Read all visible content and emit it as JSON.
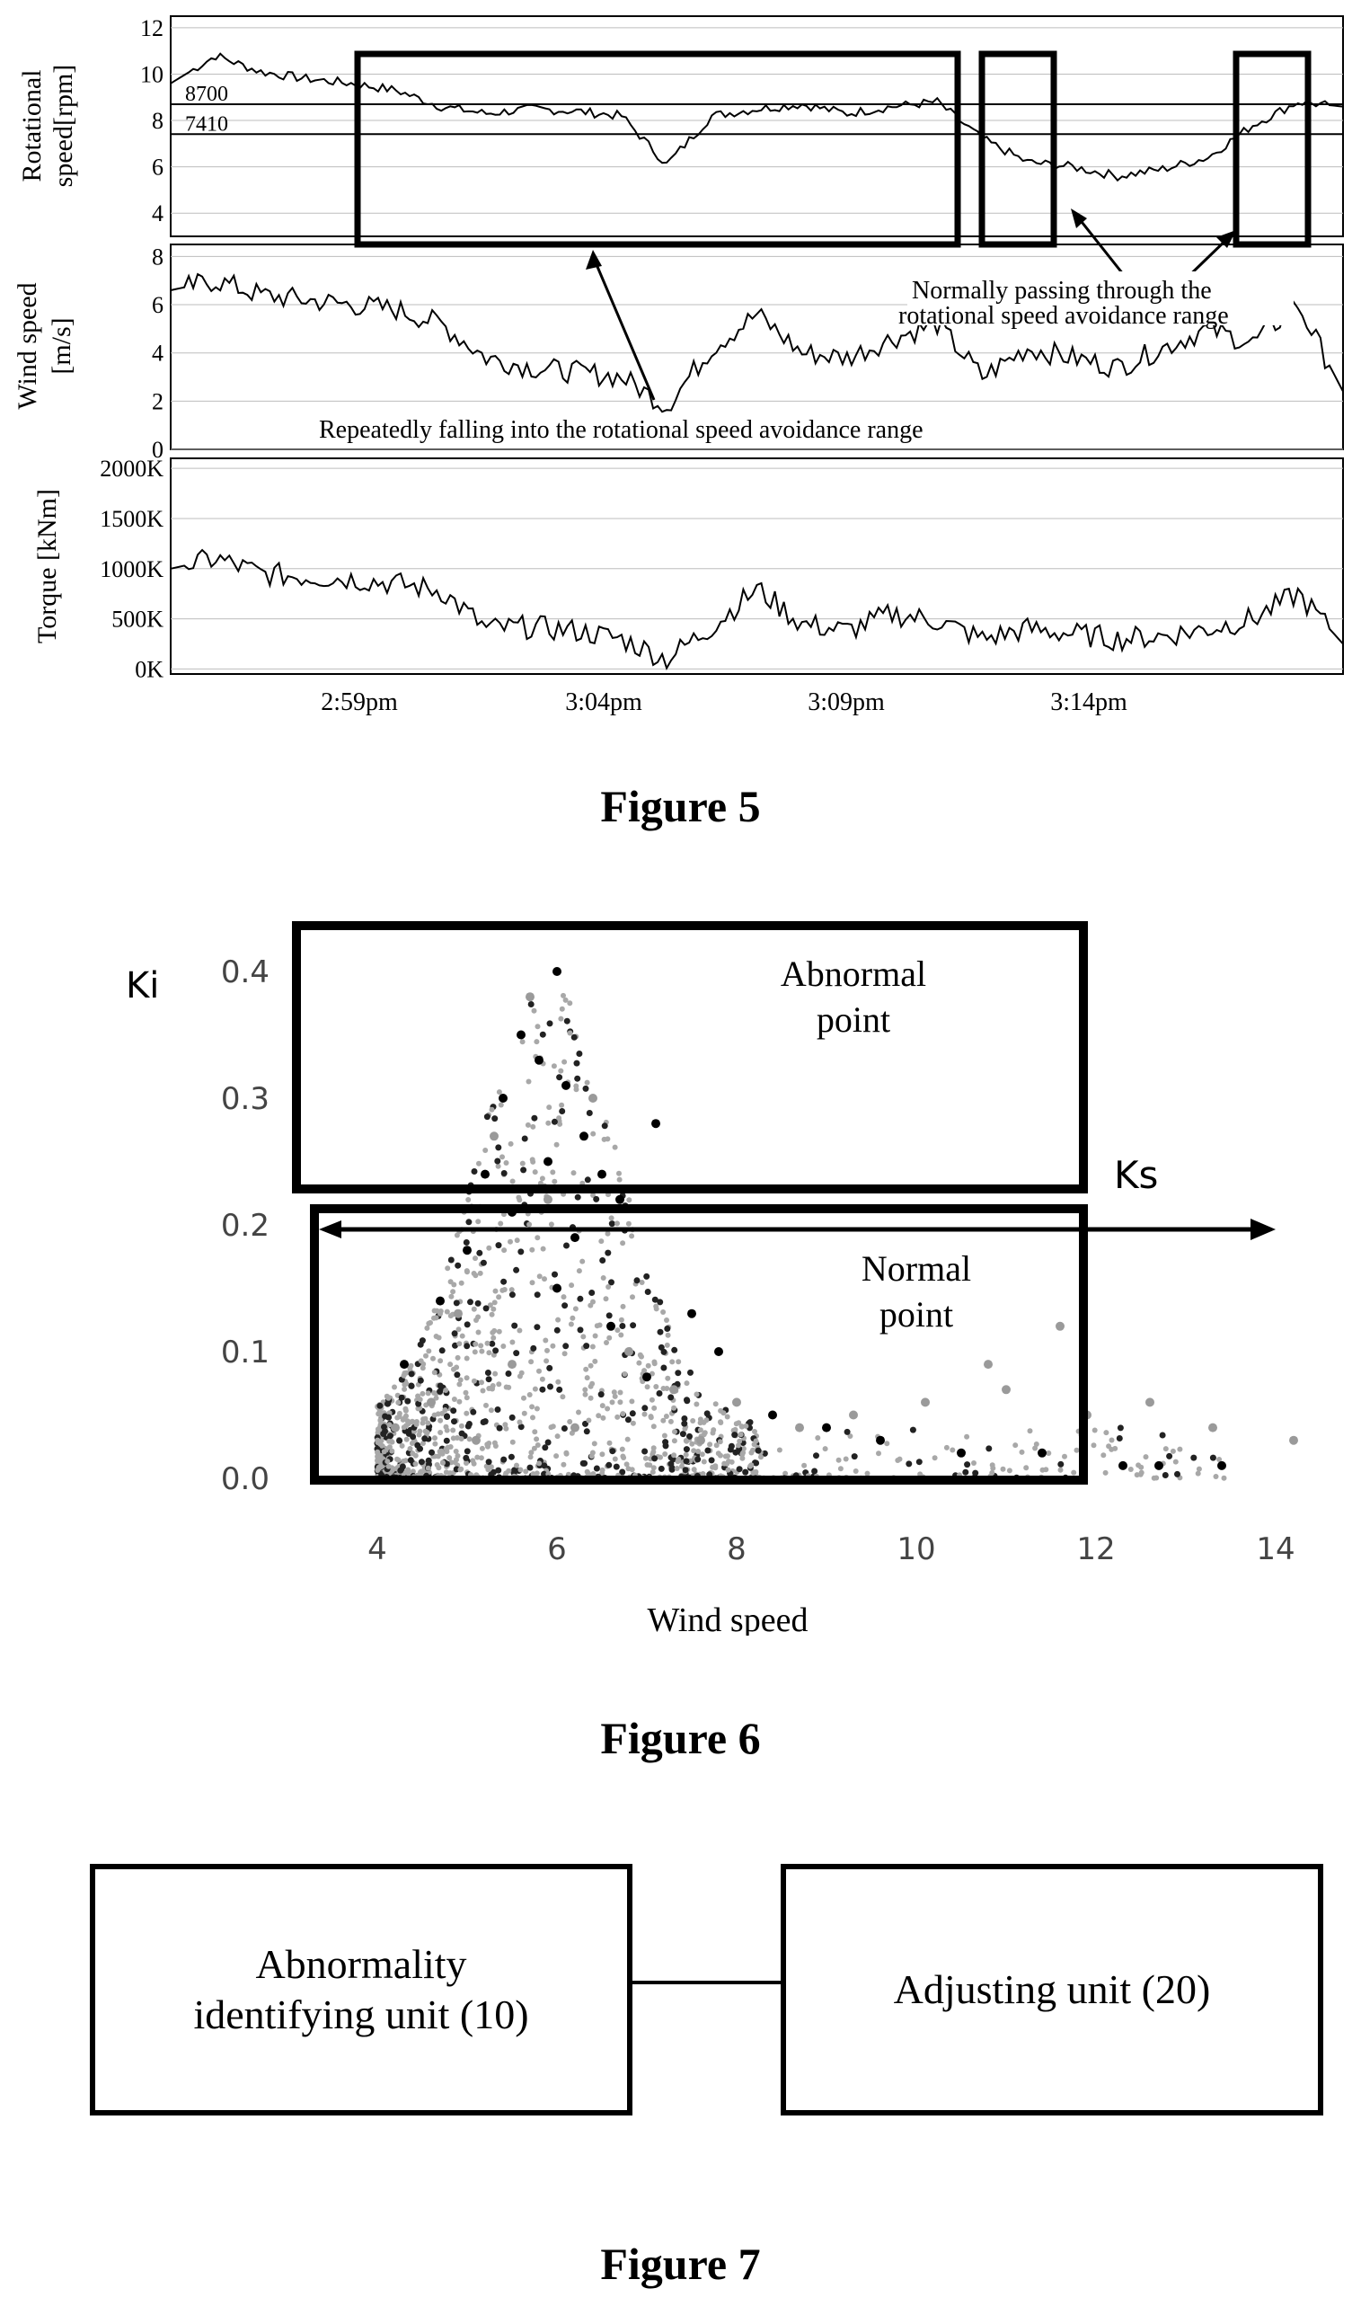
{
  "figure5": {
    "caption": "Figure 5",
    "time_ticks": [
      "2:59pm",
      "3:04pm",
      "3:09pm",
      "3:14pm"
    ],
    "annotations": {
      "repeat": "Repeatedly falling into the rotational speed avoidance range",
      "normal_line1": "Normally passing through the",
      "normal_line2": "rotational speed avoidance range"
    },
    "speed_ref_labels": [
      "8700",
      "7410"
    ],
    "chart_data": [
      {
        "type": "line",
        "ylabel": "Rotational speed[rpm]",
        "ylabel_line1": "Rotational",
        "ylabel_line2": "speed[rpm]",
        "ylim": [
          3,
          12.5
        ],
        "yticks": [
          4,
          6,
          8,
          10,
          12
        ],
        "ytick_labels": [
          "4",
          "6",
          "8",
          "10",
          "12"
        ],
        "grid": true,
        "x_start": "2:55pm",
        "x_end": "3:21pm",
        "reference_lines": [
          {
            "label": "8700",
            "value": 8.7
          },
          {
            "label": "7410",
            "value": 7.41
          }
        ],
        "x": [
          "2:55pm",
          "2:56pm",
          "2:57pm",
          "2:58pm",
          "2:59pm",
          "3:00pm",
          "3:01pm",
          "3:02pm",
          "3:03pm",
          "3:04pm",
          "3:05pm",
          "3:06pm",
          "3:07pm",
          "3:08pm",
          "3:09pm",
          "3:10pm",
          "3:11pm",
          "3:12pm",
          "3:13pm",
          "3:14pm",
          "3:15pm",
          "3:16pm",
          "3:17pm",
          "3:18pm",
          "3:19pm",
          "3:20pm",
          "3:21pm"
        ],
        "values": [
          9.6,
          10.8,
          10.1,
          9.8,
          9.6,
          9.3,
          8.6,
          8.3,
          8.5,
          8.4,
          8.2,
          6.1,
          8.2,
          8.5,
          8.7,
          8.3,
          8.6,
          8.8,
          7.2,
          6.2,
          6.0,
          5.6,
          5.9,
          6.4,
          7.8,
          8.8,
          8.6
        ]
      },
      {
        "type": "line",
        "ylabel": "Wind speed [m/s]",
        "ylabel_line1": "Wind speed",
        "ylabel_line2": "[m/s]",
        "ylim": [
          0,
          8.5
        ],
        "yticks": [
          0,
          2,
          4,
          6,
          8
        ],
        "ytick_labels": [
          "0",
          "2",
          "4",
          "6",
          "8"
        ],
        "grid": true,
        "x_start": "2:55pm",
        "x_end": "3:21pm",
        "x": [
          "2:55pm",
          "2:56pm",
          "2:57pm",
          "2:58pm",
          "2:59pm",
          "3:00pm",
          "3:01pm",
          "3:02pm",
          "3:03pm",
          "3:04pm",
          "3:05pm",
          "3:06pm",
          "3:07pm",
          "3:08pm",
          "3:09pm",
          "3:10pm",
          "3:11pm",
          "3:12pm",
          "3:13pm",
          "3:14pm",
          "3:15pm",
          "3:16pm",
          "3:17pm",
          "3:18pm",
          "3:19pm",
          "3:20pm",
          "3:21pm"
        ],
        "values": [
          6.6,
          7.0,
          6.4,
          6.2,
          6.0,
          5.8,
          5.2,
          3.8,
          3.4,
          3.2,
          3.0,
          1.8,
          4.2,
          5.6,
          4.0,
          3.8,
          4.6,
          5.2,
          3.0,
          4.2,
          3.8,
          3.4,
          4.2,
          5.0,
          4.4,
          6.0,
          2.4
        ]
      },
      {
        "type": "line",
        "ylabel": "Torque [kNm]",
        "ylim": [
          -50,
          2100
        ],
        "yticks": [
          0,
          500,
          1000,
          1500,
          2000
        ],
        "ytick_labels": [
          "0K",
          "500K",
          "1000K",
          "1500K",
          "2000K"
        ],
        "grid": true,
        "x_start": "2:55pm",
        "x_end": "3:21pm",
        "x": [
          "2:55pm",
          "2:56pm",
          "2:57pm",
          "2:58pm",
          "2:59pm",
          "3:00pm",
          "3:01pm",
          "3:02pm",
          "3:03pm",
          "3:04pm",
          "3:05pm",
          "3:06pm",
          "3:07pm",
          "3:08pm",
          "3:09pm",
          "3:10pm",
          "3:11pm",
          "3:12pm",
          "3:13pm",
          "3:14pm",
          "3:15pm",
          "3:16pm",
          "3:17pm",
          "3:18pm",
          "3:19pm",
          "3:20pm",
          "3:21pm"
        ],
        "values": [
          1000,
          1100,
          950,
          920,
          900,
          850,
          780,
          400,
          420,
          380,
          300,
          100,
          420,
          800,
          450,
          380,
          550,
          480,
          300,
          400,
          350,
          300,
          330,
          400,
          500,
          750,
          250
        ]
      }
    ]
  },
  "figure6": {
    "caption": "Figure 6",
    "abnormal_label": "Abnormal point",
    "abnormal_line1": "Abnormal",
    "abnormal_line2": "point",
    "normal_line1": "Normal",
    "normal_line2": "point",
    "ks_label": "Ks",
    "chart_data": {
      "type": "scatter",
      "xlabel": "Wind speed",
      "ylabel": "Ki",
      "xlim": [
        3,
        15
      ],
      "ylim": [
        0,
        0.42
      ],
      "xticks": [
        4,
        6,
        8,
        10,
        12,
        14
      ],
      "xtick_labels": [
        "4",
        "6",
        "8",
        "10",
        "12",
        "14"
      ],
      "yticks": [
        0.0,
        0.1,
        0.2,
        0.3,
        0.4
      ],
      "ytick_labels": [
        "0.0",
        "0.1",
        "0.2",
        "0.3",
        "0.4"
      ],
      "grid": false,
      "threshold_Ks": 0.2,
      "series": [
        {
          "color": "#000000",
          "points": [
            [
              6.0,
              0.4
            ],
            [
              5.6,
              0.35
            ],
            [
              5.8,
              0.33
            ],
            [
              6.1,
              0.31
            ],
            [
              7.1,
              0.28
            ],
            [
              5.4,
              0.3
            ],
            [
              6.3,
              0.27
            ],
            [
              5.9,
              0.25
            ],
            [
              6.5,
              0.24
            ],
            [
              5.2,
              0.24
            ],
            [
              6.7,
              0.22
            ],
            [
              5.5,
              0.21
            ],
            [
              6.2,
              0.19
            ],
            [
              5.0,
              0.18
            ],
            [
              4.7,
              0.14
            ],
            [
              7.5,
              0.13
            ],
            [
              7.8,
              0.1
            ],
            [
              4.3,
              0.09
            ],
            [
              8.4,
              0.05
            ],
            [
              9.0,
              0.04
            ],
            [
              9.6,
              0.03
            ],
            [
              10.5,
              0.02
            ],
            [
              11.4,
              0.02
            ],
            [
              12.3,
              0.01
            ],
            [
              12.7,
              0.01
            ],
            [
              13.4,
              0.01
            ],
            [
              6.6,
              0.12
            ],
            [
              6.0,
              0.15
            ],
            [
              7.0,
              0.08
            ]
          ]
        },
        {
          "color": "#9a9a9a",
          "points": [
            [
              5.7,
              0.38
            ],
            [
              5.3,
              0.27
            ],
            [
              6.4,
              0.3
            ],
            [
              5.9,
              0.22
            ],
            [
              4.9,
              0.13
            ],
            [
              5.5,
              0.09
            ],
            [
              4.6,
              0.06
            ],
            [
              6.8,
              0.1
            ],
            [
              7.3,
              0.07
            ],
            [
              8.0,
              0.06
            ],
            [
              8.7,
              0.04
            ],
            [
              9.3,
              0.05
            ],
            [
              10.1,
              0.06
            ],
            [
              10.8,
              0.09
            ],
            [
              11.6,
              0.12
            ],
            [
              12.6,
              0.06
            ],
            [
              13.3,
              0.04
            ],
            [
              14.2,
              0.03
            ],
            [
              4.2,
              0.04
            ],
            [
              5.1,
              0.03
            ],
            [
              6.2,
              0.04
            ],
            [
              7.6,
              0.03
            ],
            [
              11.0,
              0.07
            ],
            [
              11.9,
              0.05
            ]
          ]
        }
      ]
    }
  },
  "figure7": {
    "caption": "Figure 7",
    "unit10_line1": "Abnormality",
    "unit10_line2": "identifying unit (10)",
    "unit20": "Adjusting unit (20)"
  }
}
